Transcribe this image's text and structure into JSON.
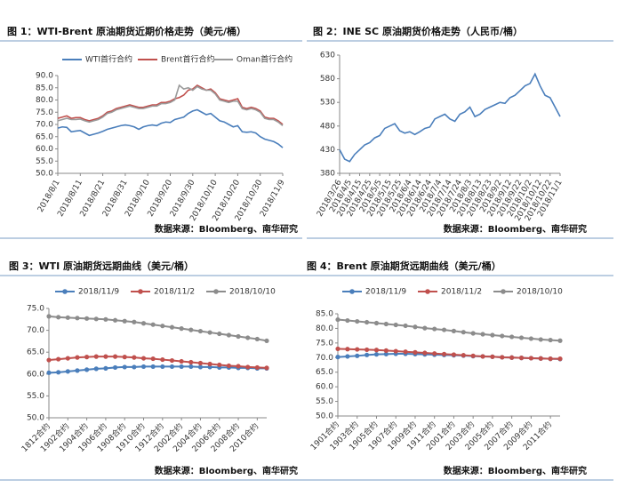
{
  "chart_data": [
    {
      "type": "line",
      "title": "图 1：WTI-Brent 原油期货近期价格走势（美元/桶）",
      "source": "数据来源：Bloomberg、南华研究",
      "legend": "top",
      "markers": false,
      "categories": [
        "2018/8/1",
        null,
        null,
        null,
        null,
        "2018/8/11",
        null,
        null,
        null,
        null,
        "2018/8/21",
        null,
        null,
        null,
        null,
        "2018/8/31",
        null,
        null,
        null,
        null,
        "2018/9/10",
        null,
        null,
        null,
        null,
        "2018/9/20",
        null,
        null,
        null,
        null,
        "2018/9/30",
        null,
        null,
        null,
        null,
        "2018/10/10",
        null,
        null,
        null,
        null,
        "2018/10/20",
        null,
        null,
        null,
        null,
        "2018/10/30",
        null,
        null,
        null,
        null,
        "2018/11/9"
      ],
      "ylim": [
        50,
        90
      ],
      "yticks": [
        {
          "value": 50,
          "label": "50.0"
        },
        {
          "value": 55,
          "label": "55.0"
        },
        {
          "value": 60,
          "label": "60.0"
        },
        {
          "value": 65,
          "label": "65.0"
        },
        {
          "value": 70,
          "label": "70.0"
        },
        {
          "value": 75,
          "label": "75.0"
        },
        {
          "value": 80,
          "label": "80.0"
        },
        {
          "value": 85,
          "label": "85.0"
        },
        {
          "value": 90,
          "label": "90.0"
        }
      ],
      "series": [
        {
          "name": "WTI首行合约",
          "color": "#4a7ebb",
          "values": [
            68.5,
            69,
            68.8,
            67,
            67.3,
            67.5,
            66.5,
            65.5,
            66,
            66.5,
            67.2,
            68,
            68.5,
            69,
            69.5,
            69.8,
            69.5,
            69,
            68,
            69,
            69.5,
            69.8,
            69.5,
            70.5,
            71,
            70.8,
            72,
            72.5,
            73,
            74.5,
            75.5,
            76,
            75,
            74,
            74.5,
            73,
            71.5,
            71,
            70,
            69,
            69.5,
            67,
            66.8,
            67,
            66.5,
            65,
            64,
            63.5,
            63,
            62,
            60.5
          ]
        },
        {
          "name": "Brent首行合约",
          "color": "#c0504d",
          "values": [
            72.5,
            73,
            73.5,
            72.5,
            72.8,
            72.8,
            72,
            71.5,
            72,
            72.5,
            73.5,
            75,
            75.5,
            76.5,
            77,
            77.5,
            78,
            77.5,
            77,
            77,
            77.5,
            78,
            78,
            79,
            79,
            79.5,
            80.5,
            81,
            82,
            84,
            84.5,
            86,
            85,
            84,
            84.5,
            83,
            80.5,
            80,
            79.5,
            80,
            80.5,
            77,
            76.5,
            77,
            76.5,
            75.5,
            73,
            72.5,
            72.5,
            71.5,
            70
          ]
        },
        {
          "name": "Oman首行合约",
          "color": "#9a9a9a",
          "values": [
            71.5,
            72,
            72.5,
            72,
            72,
            72.2,
            71.5,
            71,
            71.5,
            72,
            73,
            74.5,
            75,
            76,
            76.5,
            77,
            77.5,
            77,
            76.5,
            76.5,
            77,
            77.5,
            77.5,
            78.5,
            78.5,
            79,
            80,
            86,
            84.5,
            85,
            84,
            85.5,
            84.5,
            84,
            84,
            82.5,
            80,
            79.5,
            79,
            79.5,
            79.5,
            76.5,
            76,
            76.5,
            76,
            75,
            72.5,
            72,
            72,
            71,
            69.5
          ]
        }
      ]
    },
    {
      "type": "line",
      "title": "图 2：INE SC 原油期货价格走势（人民币/桶）",
      "source": "数据来源：Bloomberg、南华研究",
      "markers": false,
      "categories": [
        "2018/3/26",
        null,
        "2018/4/5",
        null,
        "2018/4/15",
        null,
        "2018/4/25",
        null,
        "2018/5/5",
        null,
        "2018/5/15",
        null,
        "2018/5/25",
        null,
        "2018/6/4",
        null,
        "2018/6/14",
        null,
        "2018/6/24",
        null,
        "2018/7/4",
        null,
        "2018/7/14",
        null,
        "2018/7/24",
        null,
        "2018/8/3",
        null,
        "2018/8/13",
        null,
        "2018/8/23",
        null,
        "2018/9/2",
        null,
        "2018/9/12",
        null,
        "2018/9/22",
        null,
        "2018/10/2",
        null,
        "2018/10/12",
        null,
        "2018/10/22",
        null,
        "2018/11/1"
      ],
      "ylim": [
        380,
        630
      ],
      "yticks": [
        380,
        430,
        480,
        530,
        580,
        630
      ],
      "series": [
        {
          "color": "#4a7ebb",
          "values": [
            430,
            410,
            405,
            420,
            430,
            440,
            445,
            455,
            460,
            475,
            480,
            485,
            470,
            465,
            468,
            462,
            468,
            475,
            478,
            495,
            500,
            505,
            495,
            490,
            505,
            510,
            520,
            500,
            505,
            515,
            520,
            525,
            530,
            528,
            540,
            545,
            555,
            565,
            570,
            590,
            565,
            545,
            540,
            520,
            500
          ]
        }
      ]
    },
    {
      "type": "line",
      "title": "图 3：WTI 原油期货远期曲线（美元/桶）",
      "source": "数据来源：Bloomberg、南华研究",
      "legend": "top",
      "markers": true,
      "categories": [
        "1812合约",
        null,
        "1902合约",
        null,
        "1904合约",
        null,
        "1906合约",
        null,
        "1908合约",
        null,
        "1910合约",
        null,
        "1912合约",
        null,
        "2002合约",
        null,
        "2004合约",
        null,
        "2006合约",
        null,
        "2008合约",
        null,
        "2010合约",
        null
      ],
      "ylim": [
        50,
        75
      ],
      "yticks": [
        {
          "value": 50,
          "label": "50.0"
        },
        {
          "value": 55,
          "label": "55.0"
        },
        {
          "value": 60,
          "label": "60.0"
        },
        {
          "value": 65,
          "label": "65.0"
        },
        {
          "value": 70,
          "label": "70.0"
        },
        {
          "value": 75,
          "label": "75.0"
        }
      ],
      "series": [
        {
          "name": "2018/11/9",
          "color": "#4a7ebb",
          "values": [
            60.3,
            60.4,
            60.6,
            60.8,
            61,
            61.2,
            61.3,
            61.5,
            61.6,
            61.6,
            61.7,
            61.7,
            61.7,
            61.7,
            61.7,
            61.7,
            61.6,
            61.6,
            61.5,
            61.5,
            61.4,
            61.4,
            61.3,
            61.3
          ]
        },
        {
          "name": "2018/11/2",
          "color": "#c0504d",
          "values": [
            63.2,
            63.4,
            63.6,
            63.8,
            63.9,
            64,
            64,
            64,
            63.9,
            63.8,
            63.6,
            63.5,
            63.3,
            63.1,
            62.9,
            62.7,
            62.5,
            62.3,
            62.1,
            61.9,
            61.8,
            61.6,
            61.5,
            61.4
          ]
        },
        {
          "name": "2018/10/10",
          "color": "#8c8c8c",
          "values": [
            73.2,
            73,
            72.9,
            72.8,
            72.7,
            72.6,
            72.5,
            72.3,
            72.1,
            71.9,
            71.6,
            71.3,
            71,
            70.7,
            70.4,
            70.1,
            69.8,
            69.5,
            69.2,
            68.9,
            68.6,
            68.3,
            68,
            67.6
          ]
        }
      ]
    },
    {
      "type": "line",
      "title": "图 4：Brent 原油期货远期曲线（美元/桶）",
      "source": "数据来源：Bloomberg、南华研究",
      "legend": "top",
      "markers": true,
      "categories": [
        "1901合约",
        null,
        "1903合约",
        null,
        "1905合约",
        null,
        "1907合约",
        null,
        "1909合约",
        null,
        "1911合约",
        null,
        "2001合约",
        null,
        "2003合约",
        null,
        "2005合约",
        null,
        "2007合约",
        null,
        "2009合约",
        null,
        "2011合约",
        null
      ],
      "ylim": [
        50,
        85
      ],
      "yticks": [
        {
          "value": 50,
          "label": "50.0"
        },
        {
          "value": 55,
          "label": "55.0"
        },
        {
          "value": 60,
          "label": "60.0"
        },
        {
          "value": 65,
          "label": "65.0"
        },
        {
          "value": 70,
          "label": "70.0"
        },
        {
          "value": 75,
          "label": "75.0"
        },
        {
          "value": 80,
          "label": "80.0"
        },
        {
          "value": 85,
          "label": "85.0"
        }
      ],
      "series": [
        {
          "name": "2018/11/9",
          "color": "#4a7ebb",
          "values": [
            70.2,
            70.4,
            70.6,
            70.9,
            71.1,
            71.2,
            71.3,
            71.3,
            71.2,
            71.1,
            71,
            70.9,
            70.8,
            70.7,
            70.5,
            70.4,
            70.3,
            70.1,
            70,
            69.9,
            69.8,
            69.7,
            69.6,
            69.5
          ]
        },
        {
          "name": "2018/11/2",
          "color": "#c0504d",
          "values": [
            73,
            72.9,
            72.8,
            72.7,
            72.6,
            72.4,
            72.2,
            72,
            71.8,
            71.6,
            71.4,
            71.2,
            71,
            70.8,
            70.6,
            70.4,
            70.3,
            70.1,
            70,
            69.9,
            69.8,
            69.7,
            69.6,
            69.6
          ]
        },
        {
          "name": "2018/10/10",
          "color": "#8c8c8c",
          "values": [
            83,
            82.7,
            82.4,
            82.1,
            81.8,
            81.5,
            81.2,
            80.9,
            80.5,
            80.1,
            79.8,
            79.5,
            79.1,
            78.7,
            78.3,
            78,
            77.7,
            77.4,
            77.1,
            76.8,
            76.5,
            76.2,
            76,
            75.8
          ]
        }
      ]
    }
  ]
}
